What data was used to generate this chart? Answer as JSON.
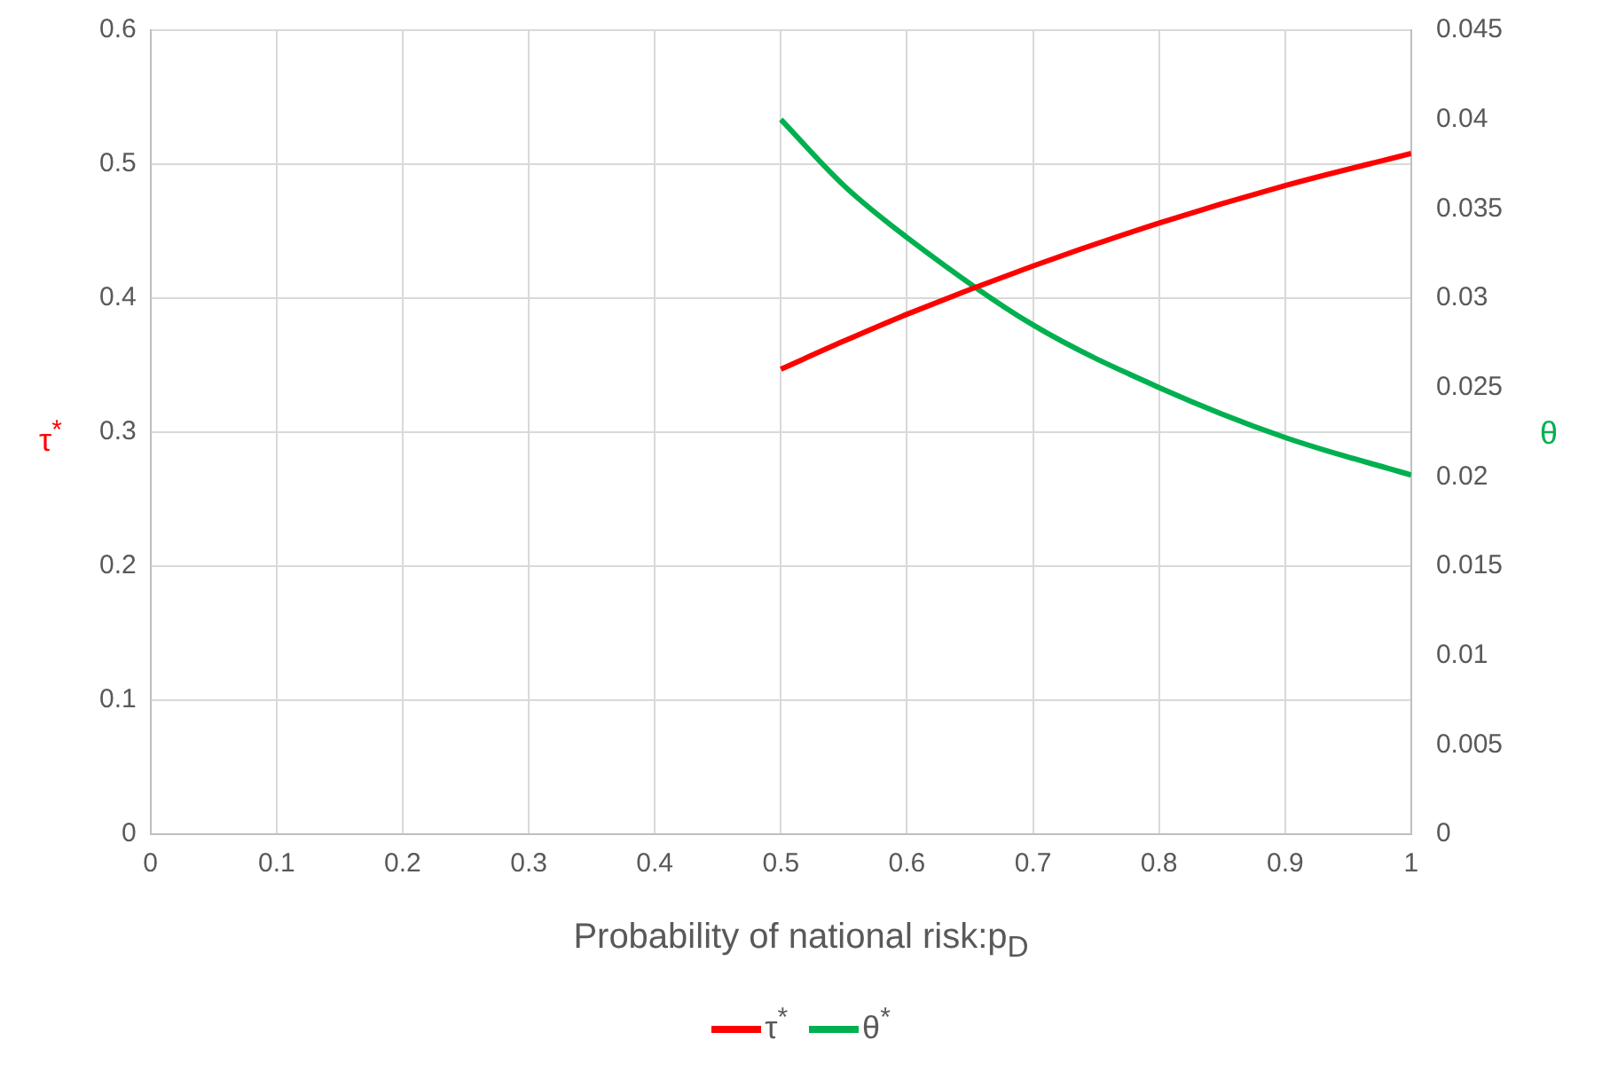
{
  "chart_data": {
    "type": "line",
    "xlabel": "Probability of national risk:p$_{D}$",
    "ylabel": "τ$^{*}$",
    "y2label": "θ",
    "x": [
      0.5,
      0.55,
      0.6,
      0.7,
      0.8,
      0.9,
      1.0
    ],
    "series": [
      {
        "name": "τ$^{*}$",
        "color": "#ff0000",
        "values": [
          0.347,
          0.368,
          0.388,
          0.424,
          0.456,
          0.484,
          0.508
        ]
      },
      {
        "name": "θ$^{*}$",
        "color": "#00b050",
        "axis": "y2",
        "values": [
          0.04,
          0.0363,
          0.0334,
          0.0285,
          0.025,
          0.0222,
          0.0201
        ]
      }
    ],
    "xlim": [
      0,
      1
    ],
    "xticks": [
      0,
      0.1,
      0.2,
      0.3,
      0.4,
      0.5,
      0.6,
      0.7,
      0.8,
      0.9,
      1
    ],
    "ylim": [
      0,
      0.6
    ],
    "yticks": [
      0,
      0.1,
      0.2,
      0.3,
      0.4,
      0.5,
      0.6
    ],
    "y2lim": [
      0,
      0.045
    ],
    "y2ticks": [
      0,
      0.005,
      0.01,
      0.015,
      0.02,
      0.025,
      0.03,
      0.035,
      0.04,
      0.045
    ],
    "grid": true,
    "legend": "bottom",
    "marker": "none",
    "line_style": "solid"
  }
}
